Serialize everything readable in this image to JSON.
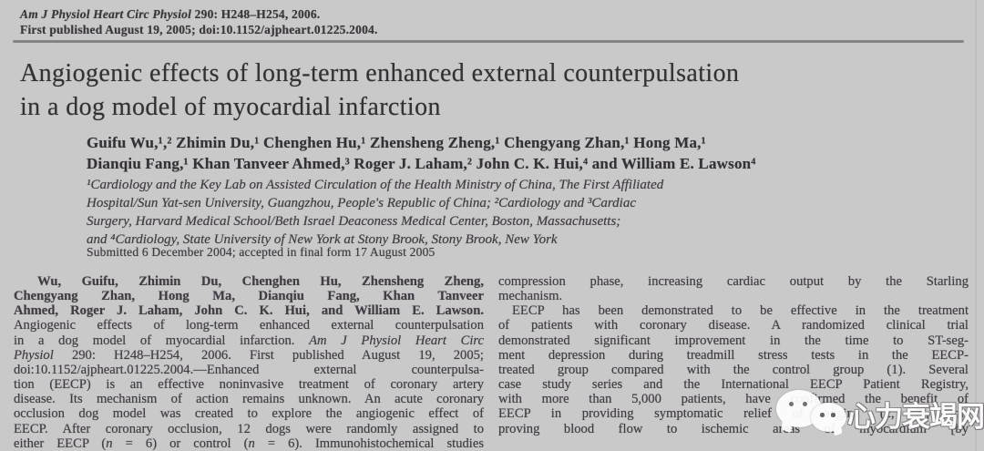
{
  "colors": {
    "page_bg": "#c9c9c9",
    "body_text": "#423c44",
    "rule": "#848484",
    "watermark": "#ffffff"
  },
  "header": {
    "journal": "Am J Physiol Heart Circ Physiol",
    "citation": " 290: H248–H254, 2006.",
    "published_line": "First published August 19, 2005; doi:10.1152/ajpheart.01225.2004."
  },
  "title": {
    "line1": "Angiogenic effects of long-term enhanced external counterpulsation",
    "line2": "in a dog model of myocardial infarction"
  },
  "authors": {
    "line1": "Guifu Wu,¹,² Zhimin Du,¹ Chenghen Hu,¹ Zhensheng Zheng,¹ Chengyang Zhan,¹ Hong Ma,¹",
    "line2": "Dianqiu Fang,¹ Khan Tanveer Ahmed,³ Roger J. Laham,² John C. K. Hui,⁴ and William E. Lawson⁴"
  },
  "affiliations": {
    "line1": "¹Cardiology and the Key Lab on Assisted Circulation of the Health Ministry of China, The First Affiliated",
    "line2": "Hospital/Sun Yat-sen University, Guangzhou, People's Republic of China; ²Cardiology and ³Cardiac",
    "line3": "Surgery, Harvard Medical School/Beth Israel Deaconess Medical Center, Boston, Massachusetts;",
    "line4": "and ⁴Cardiology, State University of New York at Stony Brook, Stony Brook, New York"
  },
  "dates": {
    "submitted": "Submitted 6 December 2004; accepted in final form 17 August 2005"
  },
  "abstract": {
    "l1": "Wu, Guifu, Zhimin Du, Chenghen Hu, Zhensheng Zheng,",
    "l2": "Chengyang Zhan, Hong Ma, Dianqiu Fang, Khan Tanveer",
    "l3": "Ahmed, Roger J. Laham, John C. K. Hui, and William E. Lawson.",
    "l4": "Angiogenic effects of long-term enhanced external counterpulsation",
    "l5_pre": "in a dog model of myocardial infarction. ",
    "l5_it": "Am J Physiol Heart Circ",
    "l6_it": "Physiol",
    "l6_post": " 290: H248–H254, 2006. First published August 19, 2005;",
    "l7": "doi:10.1152/ajpheart.01225.2004.—Enhanced external counterpulsa-",
    "l8": "tion (EECP) is an effective noninvasive treatment of coronary artery",
    "l9": "disease. Its mechanism of action remains unknown. An acute coronary",
    "l10": "occlusion dog model was created to explore the angiogenic effect of",
    "l11": "EECP. After coronary occlusion, 12 dogs were randomly assigned to",
    "l12_a": "either EECP (",
    "l12_it1": "n",
    "l12_b": " = 6) or control (",
    "l12_it2": "n",
    "l12_c": " = 6). Immunohistochemical studies"
  },
  "intro": {
    "lines": [
      "compression phase, increasing cardiac output by the Starling",
      "mechanism.",
      "EECP has been demonstrated to be effective in the treatment",
      "of patients with coronary disease. A randomized clinical trial",
      "demonstrated significant improvement in the time to ST-seg-",
      "ment depression during treadmill stress tests in the EECP-",
      "treated group compared with the control group (1). Several",
      "case study series and the International EECP Patient Registry,",
      "with more than 5,000 patients, have confirmed the benefit of",
      "EECP in providing symptomatic relief of angina (2, 7), im-",
      "proving blood flow to ischemic areas of myocardium [by"
    ]
  },
  "watermark": {
    "icon": "wechat-icon",
    "text": "心力衰竭网"
  }
}
